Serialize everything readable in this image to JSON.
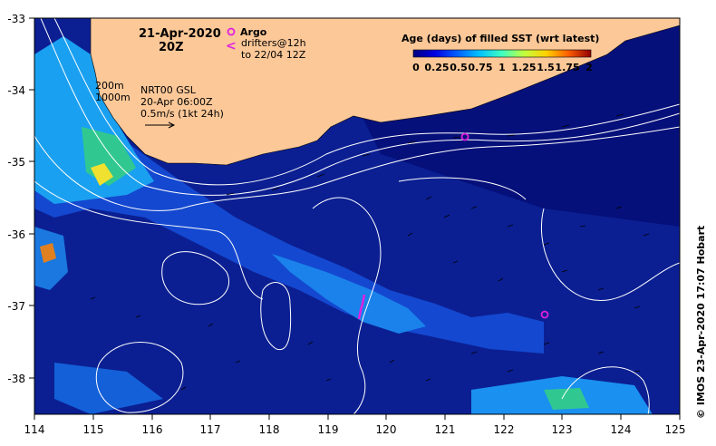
{
  "header": {
    "date": "21-Apr-2020",
    "time": "20Z"
  },
  "argo": {
    "label": "Argo",
    "color": "#e020e0"
  },
  "drifters": {
    "line1": "drifters@12h",
    "line2": "to 22/04 12Z",
    "color": "#e020e0"
  },
  "contours": {
    "c1": "200m",
    "c2": "1000m"
  },
  "currents": {
    "line1": "NRT00 GSL",
    "line2": "20-Apr 06:00Z",
    "line3": "0.5m/s (1kt 24h)"
  },
  "legend": {
    "title": "Age (days) of filled SST (wrt latest)",
    "ticks": [
      "0",
      "0.25",
      "0.5",
      "0.75",
      "1",
      "1.25",
      "1.5",
      "1.75",
      "2"
    ],
    "colors": [
      "#00007f",
      "#0000c8",
      "#0040ff",
      "#0090ff",
      "#00d8ff",
      "#40ffc0",
      "#a0ff60",
      "#ffff00",
      "#ffb000",
      "#ff5000",
      "#e00000",
      "#800000"
    ]
  },
  "axes": {
    "x_ticks": [
      "114",
      "115",
      "116",
      "117",
      "118",
      "119",
      "120",
      "121",
      "122",
      "123",
      "124",
      "125"
    ],
    "y_ticks": [
      "-33",
      "-34",
      "-35",
      "-36",
      "-37",
      "-38"
    ]
  },
  "colors": {
    "land": "#fcc898",
    "ocean_deep": "#00005f",
    "ocean": "#0a1a8c",
    "ocean_mid": "#1040c8",
    "ocean_light": "#1a8cf0"
  },
  "credit": "© IMOS 23-Apr-2020 17:07 Hobart"
}
